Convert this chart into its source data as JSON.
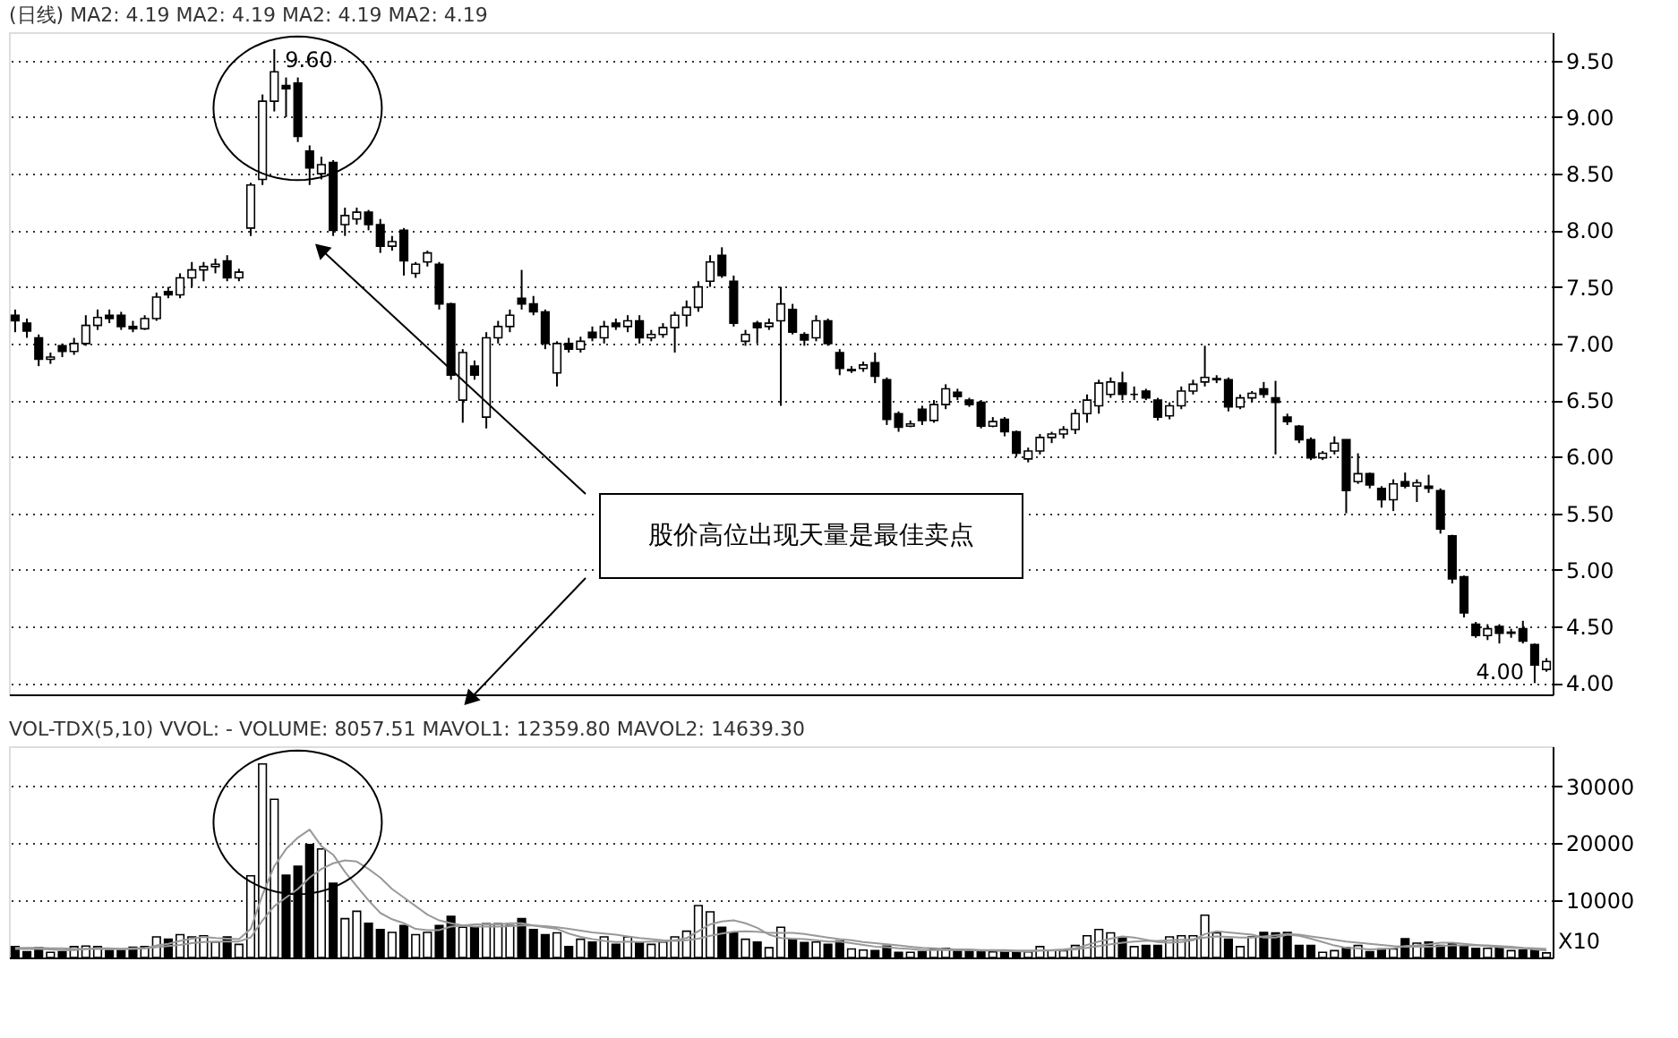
{
  "chart_data": [
    {
      "type": "candlestick",
      "title": "(日线) MA2: 4.19 MA2: 4.19 MA2: 4.19 MA2: 4.19",
      "categories": [
        null,
        null,
        null,
        null,
        null,
        null,
        null,
        null,
        null,
        null,
        null,
        null,
        null,
        null,
        null,
        null,
        null,
        null,
        null,
        null,
        null,
        null,
        null,
        null,
        null,
        null,
        null,
        null,
        null,
        null,
        null,
        null,
        null,
        null,
        null,
        null,
        null,
        null,
        null,
        null,
        null,
        null,
        null,
        null,
        null,
        null,
        null,
        null,
        null,
        null,
        null,
        null,
        null,
        null,
        null,
        null,
        null,
        null,
        null,
        null,
        null,
        null,
        null,
        null,
        null,
        null,
        null,
        null,
        null,
        null,
        null,
        null,
        null,
        null,
        null,
        null,
        null,
        null,
        null,
        null,
        null,
        null,
        null,
        null,
        null,
        null,
        null,
        null,
        null,
        null,
        null,
        null,
        null,
        null,
        null,
        null,
        null,
        null,
        null,
        null,
        null,
        null,
        null,
        null,
        null,
        null,
        null,
        null,
        null,
        null,
        null,
        null,
        null,
        null,
        null,
        null,
        null,
        null,
        null,
        null,
        null,
        null,
        null,
        null,
        null,
        null,
        null,
        null,
        null,
        null,
        null
      ],
      "ohlc": [
        [
          7.25,
          7.3,
          7.1,
          7.2
        ],
        [
          7.18,
          7.22,
          7.05,
          7.11
        ],
        [
          7.05,
          7.08,
          6.8,
          6.86
        ],
        [
          6.86,
          6.92,
          6.82,
          6.88
        ],
        [
          6.98,
          7.0,
          6.88,
          6.93
        ],
        [
          6.93,
          7.05,
          6.9,
          7.0
        ],
        [
          7.0,
          7.25,
          6.98,
          7.16
        ],
        [
          7.16,
          7.3,
          7.12,
          7.23
        ],
        [
          7.25,
          7.3,
          7.18,
          7.22
        ],
        [
          7.25,
          7.28,
          7.12,
          7.15
        ],
        [
          7.15,
          7.2,
          7.1,
          7.13
        ],
        [
          7.13,
          7.25,
          7.12,
          7.22
        ],
        [
          7.22,
          7.45,
          7.2,
          7.41
        ],
        [
          7.46,
          7.5,
          7.4,
          7.43
        ],
        [
          7.43,
          7.62,
          7.4,
          7.58
        ],
        [
          7.58,
          7.72,
          7.5,
          7.65
        ],
        [
          7.65,
          7.72,
          7.55,
          7.68
        ],
        [
          7.68,
          7.75,
          7.62,
          7.7
        ],
        [
          7.73,
          7.78,
          7.55,
          7.58
        ],
        [
          7.58,
          7.66,
          7.55,
          7.63
        ],
        [
          8.02,
          8.42,
          7.95,
          8.4
        ],
        [
          8.45,
          9.2,
          8.4,
          9.14
        ],
        [
          9.14,
          9.6,
          9.05,
          9.4
        ],
        [
          9.28,
          9.35,
          9.0,
          9.25
        ],
        [
          9.3,
          9.35,
          8.78,
          8.83
        ],
        [
          8.7,
          8.75,
          8.4,
          8.55
        ],
        [
          8.5,
          8.65,
          8.45,
          8.58
        ],
        [
          8.6,
          8.62,
          7.95,
          8.0
        ],
        [
          8.05,
          8.2,
          7.95,
          8.13
        ],
        [
          8.1,
          8.2,
          8.05,
          8.16
        ],
        [
          8.16,
          8.18,
          8.0,
          8.05
        ],
        [
          8.05,
          8.1,
          7.8,
          7.86
        ],
        [
          7.86,
          7.95,
          7.82,
          7.9
        ],
        [
          8.0,
          8.02,
          7.6,
          7.73
        ],
        [
          7.62,
          7.72,
          7.58,
          7.7
        ],
        [
          7.72,
          7.82,
          7.68,
          7.8
        ],
        [
          7.7,
          7.72,
          7.3,
          7.35
        ],
        [
          7.35,
          7.36,
          6.68,
          6.72
        ],
        [
          6.5,
          6.95,
          6.3,
          6.92
        ],
        [
          6.8,
          6.85,
          6.68,
          6.72
        ],
        [
          6.35,
          7.1,
          6.25,
          7.05
        ],
        [
          7.05,
          7.2,
          7.0,
          7.15
        ],
        [
          7.15,
          7.3,
          7.1,
          7.25
        ],
        [
          7.4,
          7.65,
          7.3,
          7.35
        ],
        [
          7.35,
          7.42,
          7.25,
          7.28
        ],
        [
          7.28,
          7.3,
          6.95,
          7.0
        ],
        [
          6.74,
          7.02,
          6.62,
          7.0
        ],
        [
          7.0,
          7.05,
          6.92,
          6.95
        ],
        [
          6.95,
          7.06,
          6.92,
          7.02
        ],
        [
          7.1,
          7.15,
          7.02,
          7.05
        ],
        [
          7.05,
          7.2,
          7.0,
          7.15
        ],
        [
          7.18,
          7.22,
          7.12,
          7.15
        ],
        [
          7.15,
          7.25,
          7.1,
          7.2
        ],
        [
          7.2,
          7.25,
          7.0,
          7.05
        ],
        [
          7.05,
          7.12,
          7.02,
          7.08
        ],
        [
          7.08,
          7.18,
          7.05,
          7.14
        ],
        [
          7.14,
          7.28,
          6.92,
          7.25
        ],
        [
          7.25,
          7.38,
          7.15,
          7.32
        ],
        [
          7.32,
          7.55,
          7.28,
          7.5
        ],
        [
          7.55,
          7.78,
          7.5,
          7.72
        ],
        [
          7.78,
          7.85,
          7.58,
          7.6
        ],
        [
          7.55,
          7.6,
          7.15,
          7.18
        ],
        [
          7.02,
          7.12,
          6.98,
          7.08
        ],
        [
          7.18,
          7.2,
          7.0,
          7.14
        ],
        [
          7.15,
          7.22,
          7.12,
          7.18
        ],
        [
          7.2,
          7.5,
          6.45,
          7.35
        ],
        [
          7.3,
          7.35,
          7.08,
          7.1
        ],
        [
          7.08,
          7.1,
          6.98,
          7.03
        ],
        [
          7.05,
          7.25,
          7.02,
          7.2
        ],
        [
          7.2,
          7.22,
          6.98,
          7.0
        ],
        [
          6.92,
          6.95,
          6.72,
          6.78
        ],
        [
          6.76,
          6.8,
          6.74,
          6.77
        ],
        [
          6.78,
          6.84,
          6.75,
          6.81
        ],
        [
          6.83,
          6.92,
          6.65,
          6.71
        ],
        [
          6.68,
          6.7,
          6.28,
          6.33
        ],
        [
          6.38,
          6.4,
          6.22,
          6.26
        ],
        [
          6.27,
          6.32,
          6.26,
          6.29
        ],
        [
          6.42,
          6.45,
          6.28,
          6.32
        ],
        [
          6.32,
          6.5,
          6.3,
          6.46
        ],
        [
          6.46,
          6.64,
          6.42,
          6.6
        ],
        [
          6.57,
          6.6,
          6.5,
          6.53
        ],
        [
          6.5,
          6.52,
          6.44,
          6.46
        ],
        [
          6.48,
          6.5,
          6.25,
          6.27
        ],
        [
          6.27,
          6.35,
          6.26,
          6.31
        ],
        [
          6.33,
          6.35,
          6.18,
          6.22
        ],
        [
          6.22,
          6.23,
          6.0,
          6.03
        ],
        [
          5.98,
          6.08,
          5.95,
          6.05
        ],
        [
          6.05,
          6.2,
          6.02,
          6.17
        ],
        [
          6.17,
          6.22,
          6.12,
          6.2
        ],
        [
          6.2,
          6.27,
          6.16,
          6.24
        ],
        [
          6.24,
          6.42,
          6.2,
          6.38
        ],
        [
          6.38,
          6.55,
          6.3,
          6.5
        ],
        [
          6.45,
          6.68,
          6.38,
          6.65
        ],
        [
          6.55,
          6.7,
          6.52,
          6.66
        ],
        [
          6.65,
          6.75,
          6.5,
          6.55
        ],
        [
          6.55,
          6.62,
          6.5,
          6.55
        ],
        [
          6.58,
          6.6,
          6.5,
          6.52
        ],
        [
          6.5,
          6.52,
          6.32,
          6.35
        ],
        [
          6.36,
          6.48,
          6.33,
          6.45
        ],
        [
          6.45,
          6.62,
          6.42,
          6.58
        ],
        [
          6.58,
          6.68,
          6.55,
          6.64
        ],
        [
          6.66,
          6.98,
          6.62,
          6.7
        ],
        [
          6.68,
          6.72,
          6.65,
          6.69
        ],
        [
          6.68,
          6.7,
          6.4,
          6.44
        ],
        [
          6.44,
          6.55,
          6.42,
          6.52
        ],
        [
          6.52,
          6.58,
          6.48,
          6.56
        ],
        [
          6.6,
          6.66,
          6.52,
          6.55
        ],
        [
          6.52,
          6.67,
          6.02,
          6.48
        ],
        [
          6.35,
          6.38,
          6.28,
          6.31
        ],
        [
          6.27,
          6.28,
          6.12,
          6.15
        ],
        [
          6.15,
          6.17,
          5.97,
          5.99
        ],
        [
          5.99,
          6.05,
          5.97,
          6.03
        ],
        [
          6.05,
          6.18,
          6.02,
          6.12
        ],
        [
          6.15,
          6.15,
          5.5,
          5.7
        ],
        [
          5.78,
          6.03,
          5.76,
          5.85
        ],
        [
          5.85,
          5.86,
          5.72,
          5.75
        ],
        [
          5.72,
          5.74,
          5.55,
          5.62
        ],
        [
          5.62,
          5.8,
          5.52,
          5.76
        ],
        [
          5.78,
          5.86,
          5.72,
          5.74
        ],
        [
          5.74,
          5.8,
          5.6,
          5.77
        ],
        [
          5.74,
          5.84,
          5.68,
          5.72
        ],
        [
          5.7,
          5.72,
          5.32,
          5.36
        ],
        [
          5.3,
          5.31,
          4.88,
          4.92
        ],
        [
          4.94,
          4.95,
          4.58,
          4.62
        ],
        [
          4.52,
          4.54,
          4.4,
          4.42
        ],
        [
          4.42,
          4.52,
          4.38,
          4.48
        ],
        [
          4.5,
          4.52,
          4.35,
          4.44
        ],
        [
          4.44,
          4.48,
          4.4,
          4.45
        ],
        [
          4.48,
          4.55,
          4.35,
          4.37
        ],
        [
          4.34,
          4.35,
          4.0,
          4.16
        ],
        [
          4.12,
          4.22,
          4.1,
          4.19
        ]
      ],
      "ylim": [
        3.9,
        9.75
      ],
      "yticks": [
        {
          "value": 4,
          "label": "4.00"
        },
        {
          "value": 4.5,
          "label": "4.50"
        },
        {
          "value": 5,
          "label": "5.00"
        },
        {
          "value": 5.5,
          "label": "5.50"
        },
        {
          "value": 6,
          "label": "6.00"
        },
        {
          "value": 6.5,
          "label": "6.50"
        },
        {
          "value": 7,
          "label": "7.00"
        },
        {
          "value": 7.5,
          "label": "7.50"
        },
        {
          "value": 8,
          "label": "8.00"
        },
        {
          "value": 8.5,
          "label": "8.50"
        },
        {
          "value": 9,
          "label": "9.00"
        },
        {
          "value": 9.5,
          "label": "9.50"
        }
      ],
      "grid": "y",
      "tick_labels": "y",
      "annotations": [
        "9.60",
        "4.00",
        "股价高位出现天量是最佳卖点"
      ]
    },
    {
      "type": "bar",
      "title": "VOL-TDX(5,10) VVOL: - VOLUME: 8057.51 MAVOL1: 12359.80 MAVOL2: 14639.30",
      "categories": [
        null,
        null,
        null,
        null,
        null,
        null,
        null,
        null,
        null,
        null,
        null,
        null,
        null,
        null,
        null,
        null,
        null,
        null,
        null,
        null,
        null,
        null,
        null,
        null,
        null,
        null,
        null,
        null,
        null,
        null,
        null,
        null,
        null,
        null,
        null,
        null,
        null,
        null,
        null,
        null,
        null,
        null,
        null,
        null,
        null,
        null,
        null,
        null,
        null,
        null,
        null,
        null,
        null,
        null,
        null,
        null,
        null,
        null,
        null,
        null,
        null,
        null,
        null,
        null,
        null,
        null,
        null,
        null,
        null,
        null,
        null,
        null,
        null,
        null,
        null,
        null,
        null,
        null,
        null,
        null,
        null,
        null,
        null,
        null,
        null,
        null,
        null,
        null,
        null,
        null,
        null,
        null,
        null,
        null,
        null,
        null,
        null,
        null,
        null,
        null,
        null,
        null,
        null,
        null,
        null,
        null,
        null,
        null,
        null,
        null,
        null,
        null,
        null,
        null,
        null,
        null,
        null,
        null,
        null,
        null,
        null,
        null,
        null,
        null,
        null,
        null,
        null,
        null,
        null,
        null,
        null
      ],
      "series": [
        {
          "type": "bar",
          "values": [
            1900,
            1000,
            1700,
            900,
            1000,
            1900,
            2000,
            1900,
            1200,
            1200,
            1800,
            1900,
            3600,
            3200,
            4000,
            3600,
            3800,
            2700,
            3600,
            2300,
            14300,
            33900,
            27700,
            14400,
            16000,
            19800,
            19000,
            13000,
            6800,
            8100,
            6000,
            4900,
            4400,
            5600,
            4000,
            4400,
            5600,
            7200,
            5300,
            5300,
            5900,
            5900,
            5600,
            6800,
            4900,
            4000,
            4300,
            1900,
            3200,
            2700,
            3600,
            2300,
            3600,
            2600,
            2300,
            2700,
            3600,
            4600,
            9100,
            8000,
            5300,
            4400,
            3200,
            2700,
            1700,
            5300,
            3200,
            2600,
            2700,
            2300,
            2900,
            1500,
            1300,
            1200,
            2000,
            900,
            900,
            1000,
            1500,
            1600,
            1100,
            1100,
            1200,
            1000,
            1000,
            1000,
            1000,
            1900,
            1300,
            1200,
            2100,
            3800,
            4900,
            4300,
            3400,
            1900,
            2100,
            2100,
            3600,
            3800,
            3800,
            7400,
            4300,
            3200,
            1900,
            3600,
            4400,
            4300,
            4400,
            2100,
            2100,
            900,
            1200,
            1700,
            2100,
            1000,
            1500,
            1500,
            3300,
            2500,
            2700,
            2100,
            2500,
            1900,
            1600,
            1600,
            1600,
            1200,
            1300,
            1300,
            800
          ],
          "colors": [
            "#000000",
            "#000000",
            "#000000",
            "#ffffff",
            "#000000",
            "#ffffff",
            "#ffffff",
            "#ffffff",
            "#000000",
            "#000000",
            "#000000",
            "#ffffff",
            "#ffffff",
            "#000000",
            "#ffffff",
            "#ffffff",
            "#ffffff",
            "#ffffff",
            "#000000",
            "#ffffff",
            "#ffffff",
            "#ffffff",
            "#ffffff",
            "#000000",
            "#000000",
            "#000000",
            "#ffffff",
            "#000000",
            "#ffffff",
            "#ffffff",
            "#000000",
            "#000000",
            "#ffffff",
            "#000000",
            "#ffffff",
            "#ffffff",
            "#000000",
            "#000000",
            "#ffffff",
            "#000000",
            "#ffffff",
            "#ffffff",
            "#ffffff",
            "#000000",
            "#000000",
            "#000000",
            "#ffffff",
            "#000000",
            "#ffffff",
            "#000000",
            "#ffffff",
            "#000000",
            "#ffffff",
            "#000000",
            "#ffffff",
            "#ffffff",
            "#ffffff",
            "#ffffff",
            "#ffffff",
            "#ffffff",
            "#000000",
            "#000000",
            "#ffffff",
            "#000000",
            "#ffffff",
            "#ffffff",
            "#000000",
            "#000000",
            "#ffffff",
            "#000000",
            "#000000",
            "#ffffff",
            "#ffffff",
            "#000000",
            "#000000",
            "#000000",
            "#ffffff",
            "#000000",
            "#ffffff",
            "#ffffff",
            "#000000",
            "#000000",
            "#000000",
            "#ffffff",
            "#000000",
            "#000000",
            "#ffffff",
            "#ffffff",
            "#ffffff",
            "#ffffff",
            "#ffffff",
            "#ffffff",
            "#ffffff",
            "#ffffff",
            "#000000",
            "#ffffff",
            "#000000",
            "#000000",
            "#ffffff",
            "#ffffff",
            "#ffffff",
            "#ffffff",
            "#ffffff",
            "#000000",
            "#ffffff",
            "#ffffff",
            "#000000",
            "#000000",
            "#000000",
            "#000000",
            "#000000",
            "#ffffff",
            "#ffffff",
            "#000000",
            "#ffffff",
            "#000000",
            "#000000",
            "#ffffff",
            "#000000",
            "#ffffff",
            "#000000",
            "#000000",
            "#000000",
            "#000000",
            "#000000",
            "#ffffff",
            "#000000",
            "#ffffff",
            "#000000",
            "#000000",
            "#ffffff"
          ]
        },
        {
          "type": "line",
          "color": "#999999",
          "values": [
            1500,
            1500,
            1500,
            1400,
            1300,
            1300,
            1500,
            1600,
            1600,
            1500,
            1500,
            1600,
            2100,
            2400,
            2900,
            3300,
            3600,
            3400,
            3300,
            3200,
            5000,
            11000,
            16000,
            19000,
            21000,
            22400,
            19500,
            18000,
            15000,
            12500,
            10000,
            7800,
            6700,
            6000,
            5000,
            4800,
            4800,
            5400,
            5600,
            5800,
            5800,
            5800,
            6000,
            6000,
            5600,
            5300,
            5000,
            4200,
            3600,
            3200,
            2900,
            2700,
            2800,
            2700,
            2800,
            2800,
            3000,
            3400,
            4600,
            5800,
            6300,
            6500,
            6000,
            5200,
            4000,
            3400,
            3300,
            3200,
            3000,
            2800,
            2800,
            2500,
            2200,
            1900,
            1800,
            1600,
            1500,
            1300,
            1300,
            1300,
            1300,
            1300,
            1200,
            1200,
            1100,
            1100,
            1000,
            1200,
            1300,
            1400,
            1600,
            2200,
            2800,
            3300,
            3700,
            3500,
            3100,
            2700,
            2600,
            2700,
            3000,
            4100,
            4600,
            4400,
            4200,
            4000,
            3500,
            3500,
            4000,
            3800,
            3300,
            2700,
            2100,
            1700,
            1600,
            1400,
            1500,
            1600,
            2000,
            2100,
            2300,
            2600,
            2600,
            2400,
            2200,
            2000,
            1800,
            1700,
            1600,
            1400,
            1200
          ]
        },
        {
          "type": "line",
          "color": "#999999",
          "values": [
            1700,
            1700,
            1700,
            1600,
            1600,
            1500,
            1500,
            1500,
            1500,
            1500,
            1600,
            1600,
            1800,
            2000,
            2200,
            2500,
            2700,
            2800,
            2800,
            2800,
            3500,
            6500,
            9000,
            10500,
            12000,
            14000,
            15500,
            16500,
            17000,
            16800,
            15500,
            14000,
            12000,
            10500,
            9000,
            7500,
            6500,
            6000,
            5600,
            5400,
            5400,
            5400,
            5500,
            5600,
            5600,
            5500,
            5300,
            5000,
            4700,
            4400,
            4200,
            4000,
            3700,
            3400,
            3200,
            3000,
            2900,
            3000,
            3300,
            3800,
            4200,
            4500,
            4600,
            4500,
            4300,
            4300,
            4300,
            4100,
            3800,
            3500,
            3200,
            3000,
            2700,
            2500,
            2300,
            2100,
            1900,
            1700,
            1600,
            1500,
            1400,
            1400,
            1300,
            1300,
            1300,
            1200,
            1200,
            1200,
            1200,
            1300,
            1400,
            1700,
            2000,
            2300,
            2600,
            2800,
            2900,
            2900,
            3000,
            3100,
            3200,
            3500,
            3700,
            3600,
            3500,
            3500,
            3700,
            3900,
            4100,
            4000,
            3700,
            3400,
            3100,
            2800,
            2600,
            2400,
            2200,
            2000,
            1900,
            1900,
            1900,
            2000,
            2100,
            2100,
            2100,
            2100,
            2000,
            1900,
            1700,
            1600,
            1500
          ]
        }
      ],
      "ylim": [
        0,
        37000
      ],
      "yticks": [
        10000,
        20000,
        30000
      ],
      "grid": "y",
      "tick_labels": "y",
      "annotations": [
        "X10"
      ]
    }
  ]
}
